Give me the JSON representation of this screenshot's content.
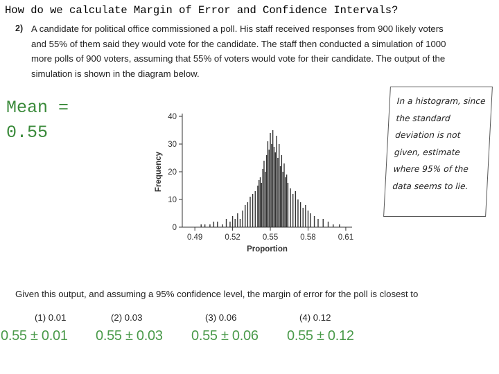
{
  "header": {
    "title": "How do we calculate Margin of Error and Confidence Intervals?"
  },
  "question": {
    "number": "2)",
    "lines": [
      "A candidate for political office commissioned a poll.  His staff received responses from 900 likely voters",
      "and 55% of them said they would vote for the candidate.  The staff then conducted a simulation of 1000",
      "more polls of 900 voters, assuming that 55% of voters would vote for their candidate.  The output of the",
      "simulation is shown in the diagram below."
    ]
  },
  "mean_note": {
    "line1": "Mean =",
    "line2": "0.55"
  },
  "handwritten_note": {
    "lines": [
      "In a histogram, since",
      "the standard",
      "deviation is not",
      "given, estimate",
      "where 95% of the",
      "data seems to lie."
    ]
  },
  "chart_data": {
    "type": "bar",
    "xlabel": "Proportion",
    "ylabel": "Frequency",
    "xlim": [
      0.48,
      0.615
    ],
    "ylim": [
      0,
      40
    ],
    "x_ticks": [
      "0.49",
      "0.52",
      "0.55",
      "0.58",
      "0.61"
    ],
    "y_ticks": [
      "0",
      "10",
      "20",
      "30",
      "40"
    ],
    "bin_centers": [
      0.495,
      0.498,
      0.502,
      0.505,
      0.508,
      0.512,
      0.515,
      0.518,
      0.52,
      0.522,
      0.524,
      0.526,
      0.528,
      0.53,
      0.532,
      0.534,
      0.536,
      0.538,
      0.54,
      0.541,
      0.542,
      0.543,
      0.544,
      0.545,
      0.546,
      0.547,
      0.548,
      0.549,
      0.55,
      0.551,
      0.552,
      0.553,
      0.554,
      0.555,
      0.556,
      0.557,
      0.558,
      0.559,
      0.56,
      0.561,
      0.562,
      0.563,
      0.564,
      0.566,
      0.568,
      0.57,
      0.572,
      0.574,
      0.576,
      0.578,
      0.58,
      0.582,
      0.585,
      0.588,
      0.592,
      0.596,
      0.6,
      0.605
    ],
    "values": [
      1,
      1,
      1,
      2,
      2,
      1,
      3,
      2,
      4,
      3,
      5,
      3,
      6,
      8,
      9,
      11,
      12,
      13,
      15,
      17,
      18,
      16,
      21,
      24,
      20,
      26,
      31,
      28,
      34,
      30,
      35,
      29,
      27,
      33,
      25,
      30,
      22,
      26,
      20,
      23,
      18,
      19,
      16,
      14,
      12,
      13,
      10,
      9,
      7,
      8,
      6,
      5,
      4,
      3,
      3,
      2,
      1,
      1
    ]
  },
  "prompt": {
    "text": "Given this output, and assuming a 95% confidence level, the margin of error for the poll is closest to"
  },
  "choices": [
    {
      "label": "(1)  0.01",
      "answer": "0.55 ± 0.01"
    },
    {
      "label": "(2)  0.03",
      "answer": "0.55 ± 0.03"
    },
    {
      "label": "(3)  0.06",
      "answer": "0.55 ± 0.06"
    },
    {
      "label": "(4)  0.12",
      "answer": "0.55 ± 0.12"
    }
  ],
  "colors": {
    "green": "#3a8a3a",
    "bar": "#333333"
  }
}
